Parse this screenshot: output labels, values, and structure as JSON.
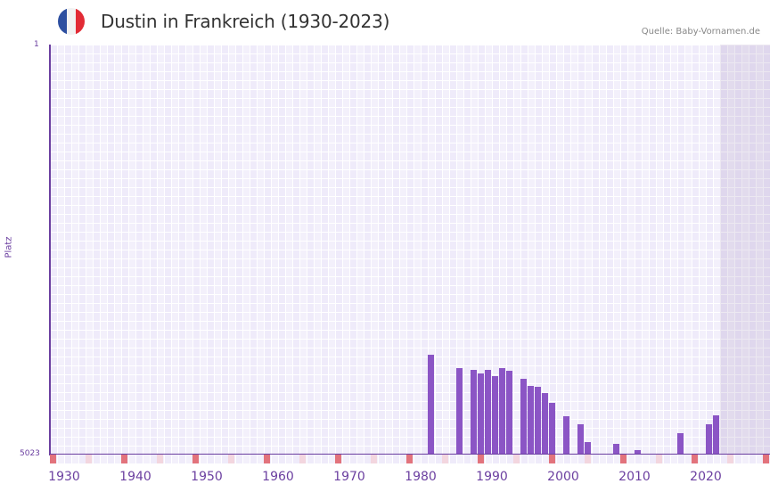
{
  "header": {
    "title": "Dustin in Frankreich (1930-2023)",
    "source": "Quelle: Baby-Vornamen.de",
    "flag_colors": [
      "#2d4fa0",
      "#f2f2f2",
      "#e22b35"
    ]
  },
  "axis": {
    "y_title": "Platz",
    "y_top": "1",
    "y_bottom": "5023",
    "x_labels": [
      "1930",
      "1940",
      "1950",
      "1960",
      "1970",
      "1980",
      "1990",
      "2000",
      "2010",
      "2020"
    ]
  },
  "colors": {
    "bar": "#8b55c5",
    "axis": "#6b3fa0",
    "decade_marker": "#e2737c",
    "half_marker": "#f3d6df"
  },
  "chart_data": {
    "type": "bar",
    "title": "Dustin in Frankreich (1930-2023)",
    "xlabel": "",
    "ylabel": "Platz",
    "ylim": [
      5023,
      1
    ],
    "y_inverted": true,
    "grid": true,
    "source": "Quelle: Baby-Vornamen.de",
    "x_tick_labels": [
      "1930",
      "1940",
      "1950",
      "1960",
      "1970",
      "1980",
      "1990",
      "2000",
      "2010",
      "2020"
    ],
    "categories": [
      "1981",
      "1985",
      "1987",
      "1988",
      "1989",
      "1990",
      "1991",
      "1992",
      "1994",
      "1995",
      "1996",
      "1997",
      "1998",
      "2000",
      "2002",
      "2003",
      "2007",
      "2010",
      "2016",
      "2020",
      "2021"
    ],
    "values": [
      3800,
      3965,
      3985,
      4030,
      3985,
      4060,
      3965,
      4000,
      4095,
      4185,
      4195,
      4270,
      4390,
      4555,
      4655,
      4875,
      4895,
      4965,
      4765,
      4655,
      4545
    ]
  }
}
